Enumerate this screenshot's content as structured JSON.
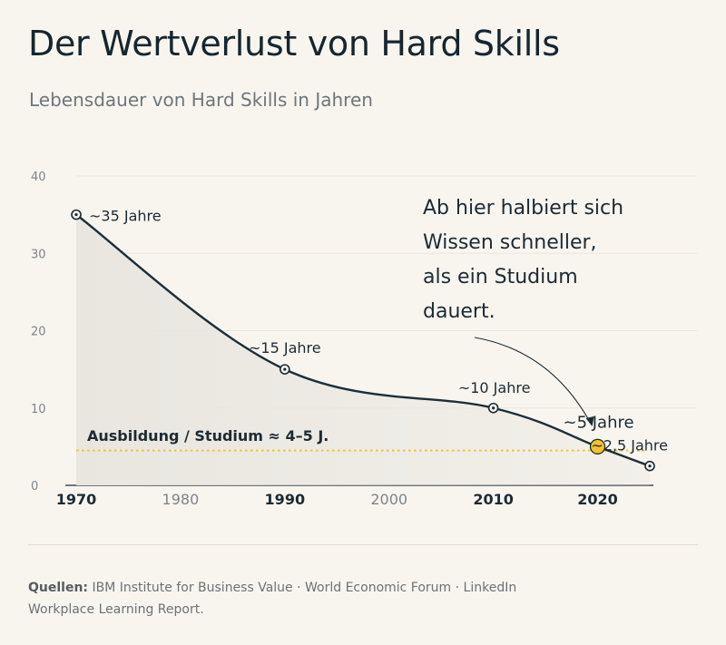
{
  "title": "Der Wertverlust von Hard Skills",
  "subtitle": "Lebensdauer von Hard Skills in Jahren",
  "footer": {
    "label": "Quellen:",
    "text": "IBM Institute for Business Value · World Economic Forum · LinkedIn Workplace Learning Report."
  },
  "colors": {
    "line": "#1c2f38",
    "highlight": "#f5c12e",
    "reference": "#f2c230",
    "area": "#e9e6e0"
  },
  "chart_data": {
    "type": "line",
    "title": "",
    "xlabel": "",
    "ylabel": "",
    "xlim": [
      1970,
      2025
    ],
    "ylim": [
      0,
      40
    ],
    "grid": true,
    "y_ticks": [
      0,
      10,
      20,
      30,
      40
    ],
    "x_ticks": [
      {
        "value": 1970,
        "label": "1970",
        "bold": true
      },
      {
        "value": 1980,
        "label": "1980",
        "bold": false
      },
      {
        "value": 1990,
        "label": "1990",
        "bold": true
      },
      {
        "value": 2000,
        "label": "2000",
        "bold": false
      },
      {
        "value": 2010,
        "label": "2010",
        "bold": true
      },
      {
        "value": 2020,
        "label": "2020",
        "bold": true
      }
    ],
    "series": [
      {
        "values": [
          {
            "x": 1970,
            "y": 35,
            "label": "~35 Jahre"
          },
          {
            "x": 1990,
            "y": 15,
            "label": "~15 Jahre"
          },
          {
            "x": 2010,
            "y": 10,
            "label": "~10 Jahre"
          },
          {
            "x": 2020,
            "y": 5,
            "label": "~5 Jahre",
            "highlight": true
          },
          {
            "x": 2025,
            "y": 2.5,
            "label": "~2,5 Jahre"
          }
        ]
      }
    ],
    "reference_line": {
      "y": 4.5,
      "label": "Ausbildung / Studium ≈ 4–5 J."
    },
    "annotation": {
      "lines": [
        "Ab hier halbiert sich",
        "Wissen schneller,",
        "als ein Studium",
        "dauert."
      ],
      "target_x": 2020
    }
  }
}
